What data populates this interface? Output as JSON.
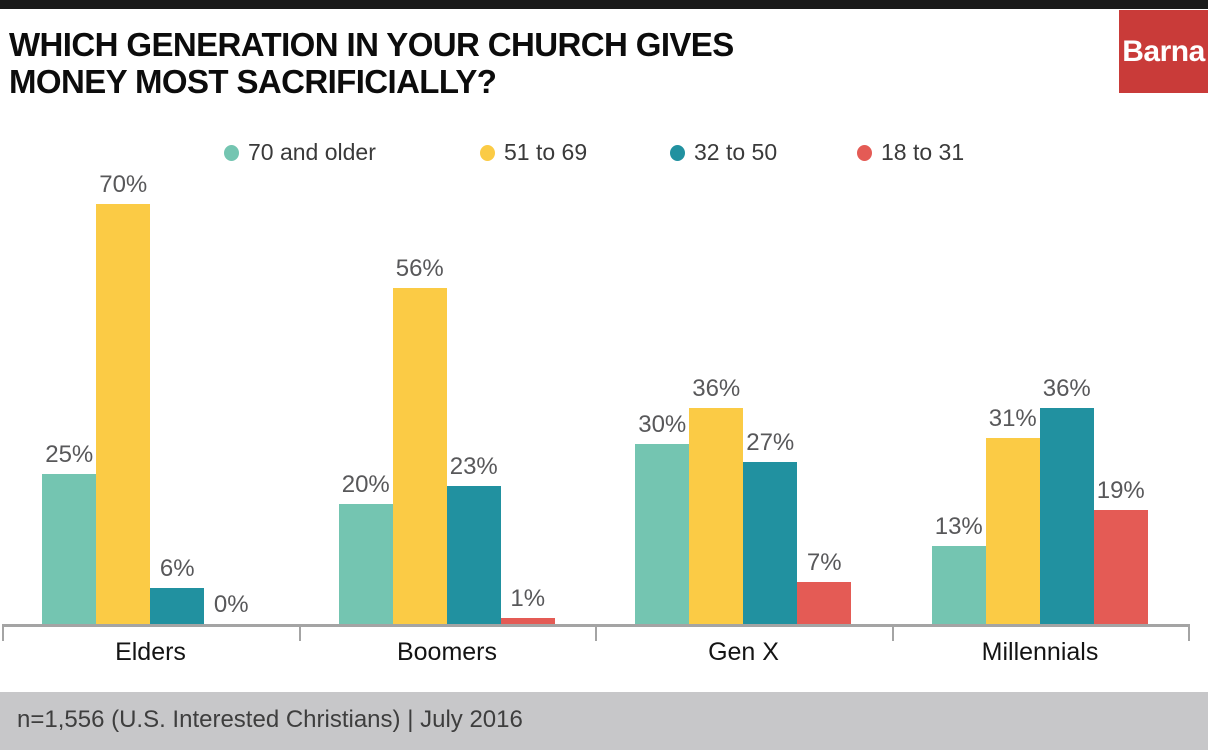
{
  "header": {
    "title_line1": "WHICH GENERATION IN YOUR CHURCH GIVES",
    "title_line2": "MONEY MOST SACRIFICIALLY?",
    "logo_text": "Barna",
    "logo_bg_color": "#c93b39",
    "top_bar_color": "#1a1a1a"
  },
  "chart_data": {
    "type": "bar",
    "title": "WHICH GENERATION IN YOUR CHURCH GIVES MONEY MOST SACRIFICIALLY?",
    "categories": [
      "Elders",
      "Boomers",
      "Gen X",
      "Millennials"
    ],
    "series": [
      {
        "name": "70 and older",
        "color": "#74c5b1",
        "values": [
          25,
          20,
          30,
          13
        ]
      },
      {
        "name": "51 to 69",
        "color": "#fbcb45",
        "values": [
          70,
          56,
          36,
          31
        ]
      },
      {
        "name": "32 to 50",
        "color": "#2191a0",
        "values": [
          6,
          23,
          27,
          36
        ]
      },
      {
        "name": "18 to 31",
        "color": "#e45b55",
        "values": [
          0,
          1,
          7,
          19
        ]
      }
    ],
    "value_suffix": "%",
    "data_labels": true,
    "ylim": [
      0,
      75
    ],
    "grid": false,
    "legend_position": "top",
    "axis_color": "#a4a4a4"
  },
  "footer": {
    "text": "n=1,556 (U.S. Interested Christians) | July 2016"
  }
}
